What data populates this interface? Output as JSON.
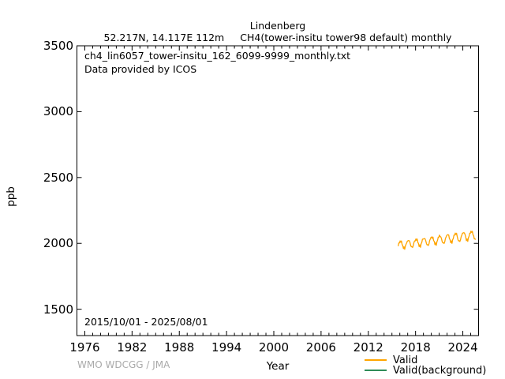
{
  "header": {
    "title": "Lindenberg",
    "subtitle_location": "52.217N, 14.117E 112m",
    "subtitle_series": "CH4(tower-insitu tower98 default) monthly"
  },
  "plot": {
    "annotation_line1": "ch4_lin6057_tower-insitu_162_6099-9999_monthly.txt",
    "annotation_line2": "Data provided by ICOS",
    "date_range": "2015/10/01 - 2025/08/01",
    "ylabel": "ppb",
    "xlabel": "Year"
  },
  "footer": {
    "credit": "WMO WDCGG / JMA"
  },
  "legend": {
    "items": [
      {
        "label": "Valid",
        "color": "#ffa500"
      },
      {
        "label": "Valid(background)",
        "color": "#2e8b57"
      }
    ]
  },
  "chart_data": {
    "type": "line",
    "title": "Lindenberg",
    "xlabel": "Year",
    "ylabel": "ppb",
    "xlim": [
      1975,
      2026
    ],
    "ylim": [
      1300,
      3500
    ],
    "xticks": [
      1976,
      1982,
      1988,
      1994,
      2000,
      2006,
      2012,
      2018,
      2024
    ],
    "yticks": [
      1500,
      2000,
      2500,
      3000,
      3500
    ],
    "x_minor_step_years": 1,
    "grid": false,
    "legend_position": "bottom-right",
    "series": [
      {
        "name": "Valid",
        "color": "#ffa500",
        "start": "2015-10",
        "frequency": "monthly",
        "unit": "ppb",
        "values": [
          1979,
          2003,
          2003,
          2019,
          2008,
          2018,
          1992,
          1984,
          1960,
          1974,
          1955,
          1982,
          1993,
          2004,
          2017,
          2020,
          2022,
          2019,
          2006,
          1985,
          1974,
          1975,
          1969,
          1983,
          2007,
          2018,
          2018,
          2034,
          2023,
          2033,
          2007,
          1999,
          1975,
          1989,
          1970,
          1997,
          2008,
          2032,
          2032,
          2035,
          2037,
          2034,
          2021,
          2000,
          1989,
          1990,
          1984,
          1998,
          2022,
          2033,
          2046,
          2049,
          2038,
          2048,
          2022,
          2014,
          1990,
          2004,
          1985,
          2012,
          2023,
          2047,
          2047,
          2063,
          2052,
          2049,
          2036,
          2015,
          2004,
          2005,
          1999,
          2013,
          2037,
          2048,
          2061,
          2064,
          2066,
          2063,
          2037,
          2029,
          2005,
          2019,
          2000,
          2027,
          2038,
          2062,
          2062,
          2078,
          2067,
          2077,
          2051,
          2030,
          2019,
          2020,
          2014,
          2028,
          2052,
          2063,
          2076,
          2079,
          2081,
          2078,
          2065,
          2044,
          2020,
          2034,
          2015,
          2042,
          2053,
          2077,
          2077,
          2093,
          2082,
          2092,
          2066,
          2058,
          2034,
          2035,
          2029
        ]
      },
      {
        "name": "Valid(background)",
        "color": "#2e8b57",
        "start": "2015-10",
        "frequency": "monthly",
        "unit": "ppb",
        "values": []
      }
    ]
  }
}
